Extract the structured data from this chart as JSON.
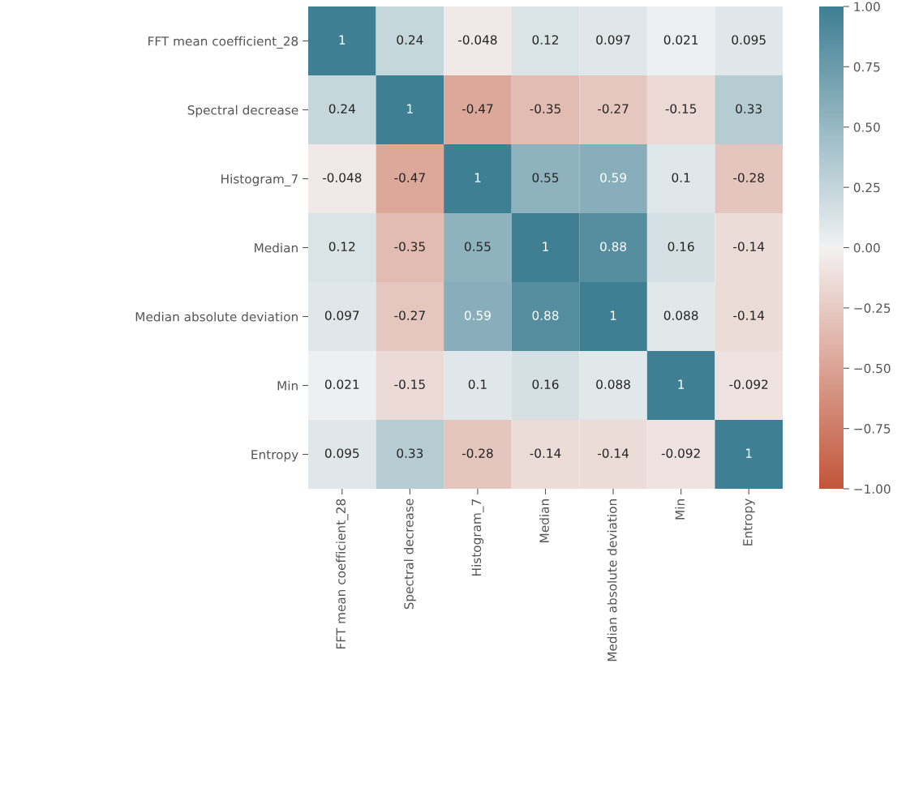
{
  "chart_data": {
    "type": "heatmap",
    "categories": [
      "FFT mean coefficient_28",
      "Spectral decrease",
      "Histogram_7",
      "Median",
      "Median absolute deviation",
      "Min",
      "Entropy"
    ],
    "y_categories": [
      "FFT mean coefficient_28",
      "Spectral decrease",
      "Histogram_7",
      "Median",
      "Median absolute deviation",
      "Min",
      "Entropy"
    ],
    "cells": [
      [
        1,
        0.24,
        -0.048,
        0.12,
        0.097,
        0.021,
        0.095
      ],
      [
        0.24,
        1,
        -0.47,
        -0.35,
        -0.27,
        -0.15,
        0.33
      ],
      [
        -0.048,
        -0.47,
        1,
        0.55,
        0.59,
        0.1,
        -0.28
      ],
      [
        0.12,
        -0.35,
        0.55,
        1,
        0.88,
        0.16,
        -0.14
      ],
      [
        0.097,
        -0.27,
        0.59,
        0.88,
        1,
        0.088,
        -0.14
      ],
      [
        0.021,
        -0.15,
        0.1,
        0.16,
        0.088,
        1,
        -0.092
      ],
      [
        0.095,
        0.33,
        -0.28,
        -0.14,
        -0.14,
        -0.092,
        1
      ]
    ],
    "clim": [
      -1.0,
      1.0
    ],
    "cticks": [
      {
        "value": -1.0,
        "label": "−1.00"
      },
      {
        "value": -0.75,
        "label": "−0.75"
      },
      {
        "value": -0.5,
        "label": "−0.50"
      },
      {
        "value": -0.25,
        "label": "−0.25"
      },
      {
        "value": 0.0,
        "label": "0.00"
      },
      {
        "value": 0.25,
        "label": "0.25"
      },
      {
        "value": 0.5,
        "label": "0.50"
      },
      {
        "value": 0.75,
        "label": "0.75"
      },
      {
        "value": 1.0,
        "label": "1.00"
      }
    ],
    "data_labels": true
  }
}
